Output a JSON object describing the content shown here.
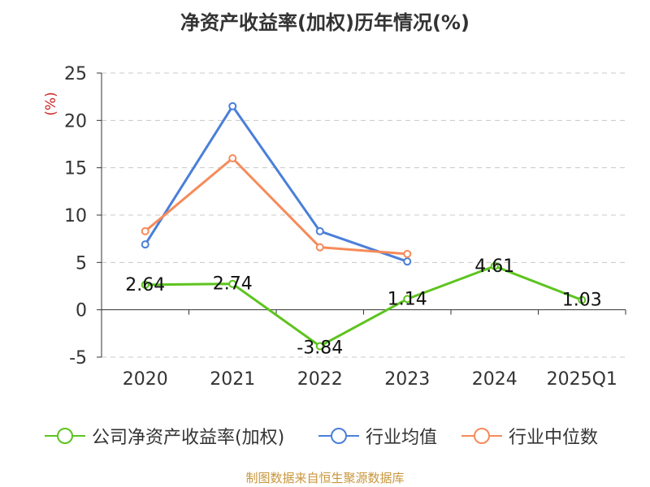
{
  "chart_data": {
    "type": "line",
    "title": "净资产收益率(加权)历年情况(%)",
    "ylabel": "(%)",
    "xlabel": "",
    "categories": [
      "2020",
      "2021",
      "2022",
      "2023",
      "2024",
      "2025Q1"
    ],
    "ylim": [
      -5,
      25
    ],
    "yticks": [
      "25",
      "20",
      "15",
      "10",
      "5",
      "0",
      "-5"
    ],
    "grid": true,
    "legend_position": "bottom",
    "series": [
      {
        "name": "公司净资产收益率(加权)",
        "color": "#5cc41e",
        "values": [
          2.64,
          2.74,
          -3.84,
          1.14,
          4.61,
          1.03
        ],
        "labels": [
          "2.64",
          "2.74",
          "-3.84",
          "1.14",
          "4.61",
          "1.03"
        ]
      },
      {
        "name": "行业均值",
        "color": "#4a7fd9",
        "values": [
          6.9,
          21.5,
          8.3,
          5.1,
          null,
          null
        ]
      },
      {
        "name": "行业中位数",
        "color": "#f68b5a",
        "values": [
          8.3,
          16.0,
          6.6,
          5.9,
          null,
          null
        ]
      }
    ],
    "source": "制图数据来自恒生聚源数据库"
  }
}
